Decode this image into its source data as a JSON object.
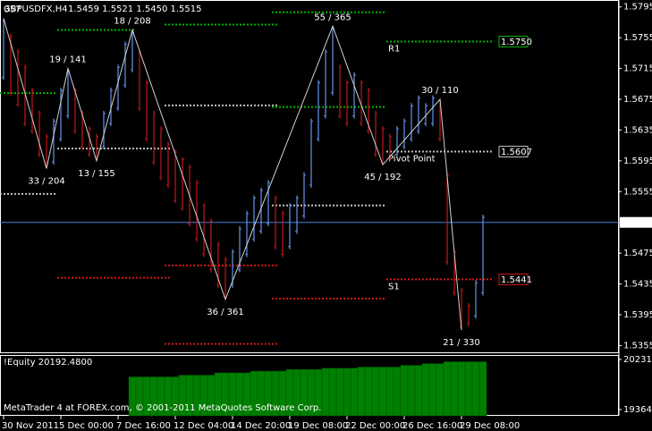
{
  "chart_data": {
    "type": "ohlc",
    "title": "GBPUSDFX,H4",
    "quote": "1.5459 1.5521 1.5450 1.5515",
    "categories": [
      "30 Nov 2011",
      null,
      null,
      null,
      null,
      null,
      null,
      null,
      "5 Dec 00:00",
      null,
      null,
      null,
      null,
      null,
      null,
      null,
      "7 Dec 16:00",
      null,
      null,
      null,
      null,
      null,
      null,
      null,
      "12 Dec 04:00",
      null,
      null,
      null,
      null,
      null,
      null,
      null,
      "14 Dec 20:00",
      null,
      null,
      null,
      null,
      null,
      null,
      null,
      "19 Dec 08:00",
      null,
      null,
      null,
      null,
      null,
      null,
      null,
      "22 Dec 00:00",
      null,
      null,
      null,
      null,
      null,
      null,
      null,
      "26 Dec 16:00",
      null,
      null,
      null,
      null,
      null,
      null,
      null,
      "29 Dec 08:00",
      null,
      null,
      null
    ],
    "high": [
      1.578,
      1.576,
      1.574,
      1.572,
      1.569,
      1.566,
      1.563,
      1.565,
      1.569,
      1.5715,
      1.569,
      1.566,
      1.564,
      1.563,
      1.566,
      1.569,
      1.572,
      1.575,
      1.5765,
      1.574,
      1.57,
      1.566,
      1.564,
      1.562,
      1.561,
      1.56,
      1.559,
      1.557,
      1.554,
      1.552,
      1.549,
      1.547,
      1.548,
      1.551,
      1.553,
      1.555,
      1.556,
      1.557,
      1.555,
      1.553,
      1.554,
      1.555,
      1.558,
      1.565,
      1.57,
      1.574,
      1.577,
      1.572,
      1.57,
      1.571,
      1.57,
      1.569,
      1.566,
      1.564,
      1.563,
      1.564,
      1.565,
      1.567,
      1.568,
      1.567,
      1.568,
      1.5675,
      1.558,
      1.548,
      1.543,
      1.541,
      1.544,
      1.5525
    ],
    "low": [
      1.57,
      1.568,
      1.5665,
      1.564,
      1.563,
      1.56,
      1.5585,
      1.559,
      1.562,
      1.565,
      1.563,
      1.561,
      1.56,
      1.5595,
      1.561,
      1.564,
      1.566,
      1.569,
      1.571,
      1.566,
      1.562,
      1.559,
      1.557,
      1.556,
      1.554,
      1.553,
      1.551,
      1.549,
      1.547,
      1.545,
      1.543,
      1.5415,
      1.543,
      1.545,
      1.547,
      1.549,
      1.55,
      1.551,
      1.548,
      1.547,
      1.548,
      1.55,
      1.552,
      1.556,
      1.562,
      1.565,
      1.568,
      1.565,
      1.564,
      1.565,
      1.564,
      1.563,
      1.56,
      1.559,
      1.5595,
      1.56,
      1.561,
      1.562,
      1.563,
      1.564,
      1.564,
      1.562,
      1.546,
      1.542,
      1.5375,
      1.538,
      1.539,
      1.542
    ],
    "up_color": "#6495ed",
    "down_color": "#c41818",
    "ylim": [
      1.5345,
      1.5804
    ],
    "yticks": [
      1.5795,
      1.5755,
      1.5715,
      1.5675,
      1.5635,
      1.5595,
      1.5555,
      1.5515,
      1.5475,
      1.5435,
      1.5395,
      1.5355
    ],
    "current_price": {
      "value": 1.5515,
      "label": "1.5515"
    },
    "current_color": "#4a7fd8",
    "zigzag": {
      "color": "#d0d0d0",
      "label_color": "#40e0d0",
      "last_label_color": "#ffd700",
      "bars": [
        0,
        6,
        9,
        13,
        18,
        31,
        46,
        53,
        61,
        64
      ],
      "values": [
        1.578,
        1.5585,
        1.5715,
        1.5595,
        1.5765,
        1.5415,
        1.577,
        1.559,
        1.5675,
        1.5375
      ],
      "labels": [
        "357",
        "33 / 204",
        "19 / 141",
        "13 / 155",
        "18 / 208",
        "36 / 361",
        "55 / 365",
        "45 / 192",
        "30 / 110",
        "21 / 330"
      ]
    },
    "levels": [
      {
        "name": "R1",
        "color": "#00b400",
        "segments": [
          {
            "from": 0,
            "to": 7,
            "value": 1.5683
          },
          {
            "from": 8,
            "to": 18,
            "value": 1.5765
          },
          {
            "from": 23,
            "to": 38,
            "value": 1.5772
          },
          {
            "from": 38,
            "to": 53,
            "value": 1.5788
          },
          {
            "from": 54,
            "to": 68,
            "value": {
              "value": 1.575,
              "label": "1.5750"
            }
          }
        ]
      },
      {
        "name": "Pivot Point",
        "color": "#c0c0c0",
        "segments": [
          {
            "from": 0,
            "to": 7,
            "value": 1.5552
          },
          {
            "from": 8,
            "to": 23,
            "value": 1.5611
          },
          {
            "from": 23,
            "to": 38,
            "value": 1.5667
          },
          {
            "from": 38,
            "to": 53,
            "value": 1.5537
          },
          {
            "from": 54,
            "to": 68,
            "value": {
              "value": 1.5607,
              "label": "1.5607"
            }
          }
        ]
      },
      {
        "name": "S1",
        "color": "#d01818",
        "segments": [
          {
            "from": 8,
            "to": 23,
            "value": 1.5443
          },
          {
            "from": 23,
            "to": 38,
            "value": 1.5459
          },
          {
            "from": 38,
            "to": 53,
            "value": 1.5416
          },
          {
            "from": 54,
            "to": 68,
            "value": {
              "value": 1.5441,
              "label": "1.5441"
            }
          }
        ]
      },
      {
        "color": "#d01818",
        "segments": [
          {
            "from": 23,
            "to": 38,
            "value": 1.5357
          }
        ]
      },
      {
        "color": "#00b400",
        "segments": [
          {
            "from": 38,
            "to": 53,
            "value": 1.5665
          }
        ]
      }
    ],
    "indicator": {
      "title": "!Equity 20192.4800",
      "color": "#008000",
      "ylim": [
        19256.3,
        20309.3
      ],
      "yticks": [
        {
          "value": 20231.86,
          "label": "20231.86"
        },
        {
          "value": 19364.7,
          "label": "19364.70"
        }
      ],
      "values": [
        null,
        null,
        null,
        null,
        null,
        null,
        null,
        null,
        null,
        null,
        null,
        null,
        null,
        null,
        null,
        null,
        null,
        null,
        19930,
        19930,
        19930,
        19930,
        19930,
        19930,
        19930,
        19960,
        19960,
        19960,
        19960,
        19960,
        20000,
        20000,
        20000,
        20000,
        20000,
        20030,
        20030,
        20030,
        20030,
        20030,
        20060,
        20060,
        20060,
        20060,
        20060,
        20080,
        20080,
        20080,
        20080,
        20080,
        20100,
        20100,
        20100,
        20100,
        20100,
        20100,
        20130,
        20130,
        20130,
        20160,
        20160,
        20160,
        20192.48,
        20192.48,
        20192.48,
        20192.48,
        20192.48,
        20192.48
      ]
    },
    "footer": "MetaTrader 4 at FOREX.com, © 2001-2011 MetaQuotes Software Corp."
  }
}
